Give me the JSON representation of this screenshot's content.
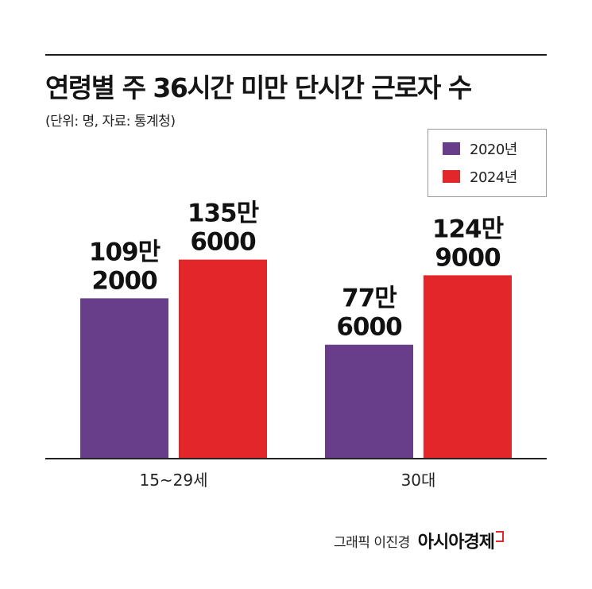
{
  "header": {
    "title": "연령별 주 36시간 미만 단시간 근로자 수",
    "subtitle": "(단위: 명, 자료: 통계청)"
  },
  "chart_data": {
    "type": "bar",
    "title": "연령별 주 36시간 미만 단시간 근로자 수",
    "subtitle": "(단위: 명, 자료: 통계청)",
    "categories": [
      "15~29세",
      "30대"
    ],
    "series": [
      {
        "name": "2020년",
        "color": "#683e8b",
        "values": [
          1092000,
          776000
        ],
        "labels": [
          [
            "109만",
            "2000"
          ],
          [
            "77만",
            "6000"
          ]
        ]
      },
      {
        "name": "2024년",
        "color": "#e3262a",
        "values": [
          1356000,
          1249000
        ],
        "labels": [
          [
            "135만",
            "6000"
          ],
          [
            "124만",
            "9000"
          ]
        ]
      }
    ],
    "xlabel": "",
    "ylabel": "",
    "ylim": [
      0,
      1500000
    ],
    "grid": false,
    "legend_position": "top-right"
  },
  "footer": {
    "credit": "그래픽 이진경",
    "brand": "아시아경제"
  }
}
